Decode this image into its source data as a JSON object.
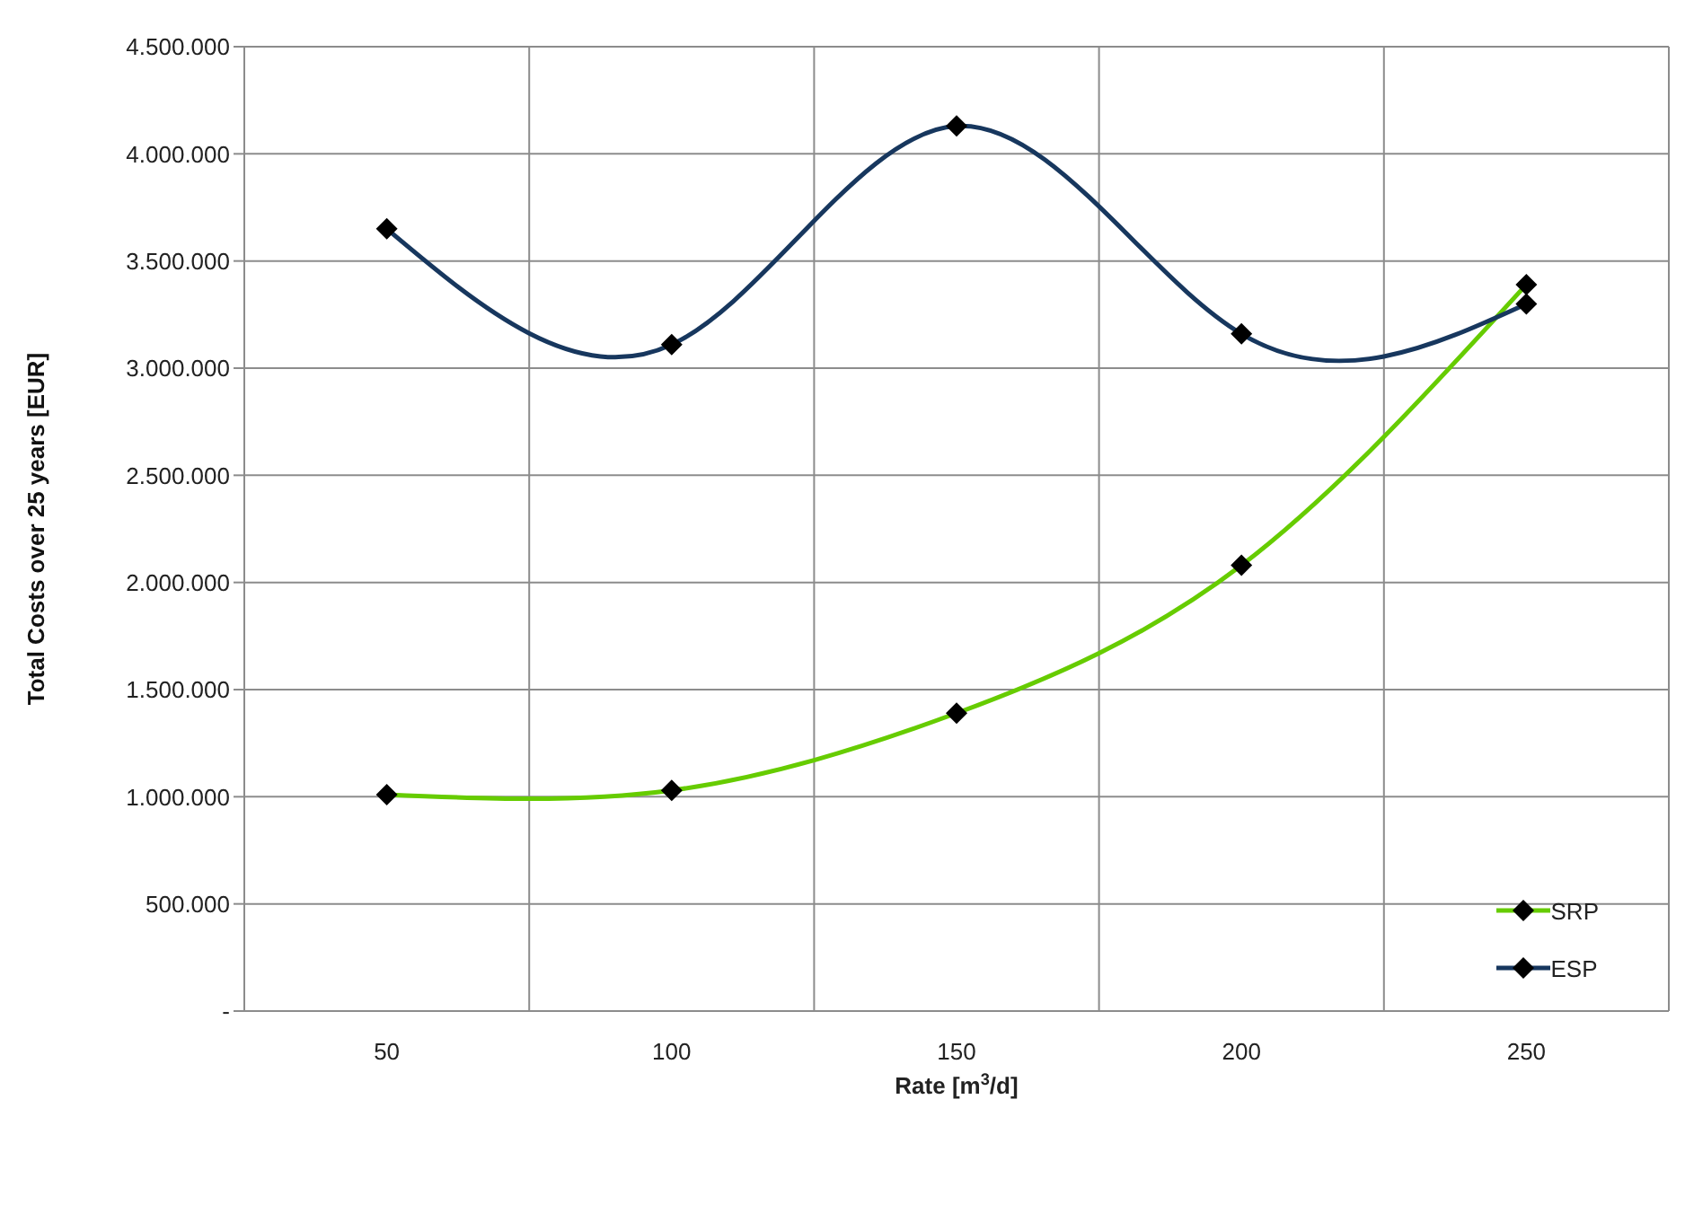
{
  "chart_data": {
    "type": "line",
    "xlabel": "Rate [m$^{3}$/d]",
    "ylabel": "Total Costs over 25 years [EUR]",
    "categories": [
      "50",
      "100",
      "150",
      "200",
      "250"
    ],
    "series": [
      {
        "name": "SRP",
        "color": "#66cc00",
        "values": [
          1010000,
          1030000,
          1390000,
          2080000,
          3390000
        ]
      },
      {
        "name": "ESP",
        "color": "#17375e",
        "values": [
          3650000,
          3110000,
          4130000,
          3160000,
          3300000
        ]
      }
    ],
    "ylim": [
      0,
      4500000
    ],
    "yticks": [
      {
        "value": 0,
        "label": "-"
      },
      {
        "value": 500000,
        "label": "500.000"
      },
      {
        "value": 1000000,
        "label": "1.000.000"
      },
      {
        "value": 1500000,
        "label": "1.500.000"
      },
      {
        "value": 2000000,
        "label": "2.000.000"
      },
      {
        "value": 2500000,
        "label": "2.500.000"
      },
      {
        "value": 3000000,
        "label": "3.000.000"
      },
      {
        "value": 3500000,
        "label": "3.500.000"
      },
      {
        "value": 4000000,
        "label": "4.000.000"
      },
      {
        "value": 4500000,
        "label": "4.500.000"
      }
    ],
    "grid": true,
    "legend": "bottom right",
    "marker": "diamond",
    "line_style": "solid"
  }
}
